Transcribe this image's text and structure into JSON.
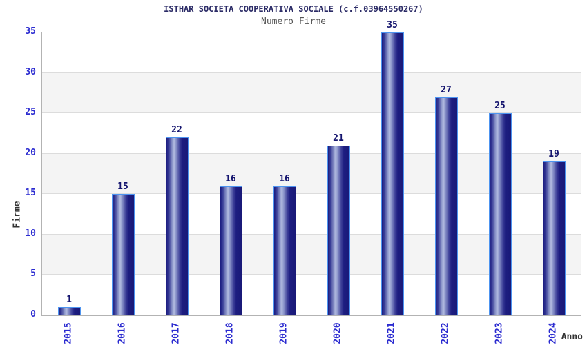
{
  "header": {
    "title": "ISTHAR SOCIETA COOPERATIVA SOCIALE (c.f.03964550267)",
    "subtitle": "Numero Firme"
  },
  "chart_data": {
    "type": "bar",
    "title": "ISTHAR SOCIETA COOPERATIVA SOCIALE (c.f.03964550267)",
    "subtitle": "Numero Firme",
    "categories": [
      "2015",
      "2016",
      "2017",
      "2018",
      "2019",
      "2020",
      "2021",
      "2022",
      "2023",
      "2024"
    ],
    "values": [
      1,
      15,
      22,
      16,
      16,
      21,
      35,
      27,
      25,
      19
    ],
    "xlabel": "Anno",
    "ylabel": "Firme",
    "ylim": [
      0,
      35
    ],
    "ytick_step": 5,
    "yticks": [
      0,
      5,
      10,
      15,
      20,
      25,
      30,
      35
    ],
    "grid": true,
    "legend": "none",
    "colors": {
      "bar_dark": "#191978",
      "bar_light": "#b2bbe0",
      "bar_border": "#4d94f0",
      "tick_label": "#2b2bd0",
      "value_label": "#14146e",
      "title": "#2b2b66",
      "subtitle": "#555555",
      "axis_title": "#333333",
      "gridline": "#dcdcdc",
      "band_white": "#ffffff",
      "band_gray": "#f4f4f4"
    }
  }
}
